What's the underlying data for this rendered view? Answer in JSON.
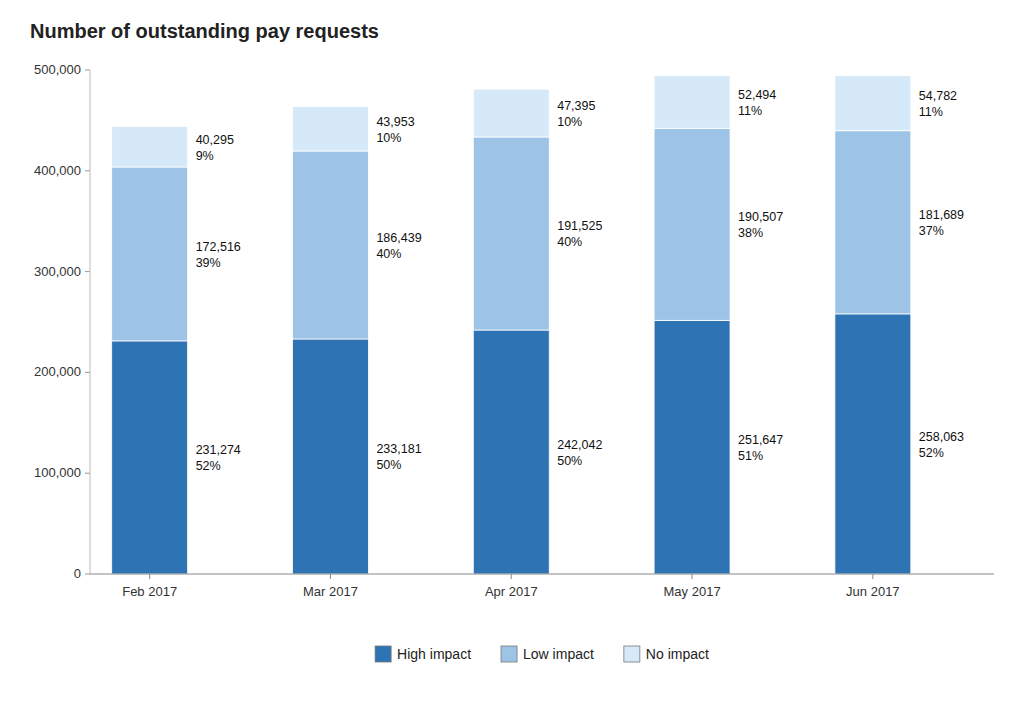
{
  "chart_data": {
    "type": "bar",
    "stacked": true,
    "title": "Number of outstanding pay requests",
    "categories": [
      "Feb 2017",
      "Mar 2017",
      "Apr 2017",
      "May 2017",
      "Jun 2017"
    ],
    "series": [
      {
        "name": "High impact",
        "color": "#2e74b5",
        "values": [
          231274,
          233181,
          242042,
          251647,
          258063
        ],
        "value_labels": [
          "231,274",
          "233,181",
          "242,042",
          "251,647",
          "258,063"
        ],
        "share_labels": [
          "52%",
          "50%",
          "50%",
          "51%",
          "52%"
        ]
      },
      {
        "name": "Low impact",
        "color": "#9dc3e6",
        "values": [
          172516,
          186439,
          191525,
          190507,
          181689
        ],
        "value_labels": [
          "172,516",
          "186,439",
          "191,525",
          "190,507",
          "181,689"
        ],
        "share_labels": [
          "39%",
          "40%",
          "40%",
          "38%",
          "37%"
        ]
      },
      {
        "name": "No impact",
        "color": "#d6e9f8",
        "values": [
          40295,
          43953,
          47395,
          52494,
          54782
        ],
        "value_labels": [
          "40,295",
          "43,953",
          "47,395",
          "52,494",
          "54,782"
        ],
        "share_labels": [
          "9%",
          "10%",
          "10%",
          "11%",
          "11%"
        ]
      }
    ],
    "ylim": [
      0,
      500000
    ],
    "yticks": [
      0,
      {
        "value": 100000,
        "label": "100,000"
      },
      {
        "value": 200000,
        "label": "200,000"
      },
      {
        "value": 300000,
        "label": "300,000"
      },
      {
        "value": 400000,
        "label": "400,000"
      },
      {
        "value": 500000,
        "label": "500,000"
      }
    ],
    "grid": false,
    "legend": "bottom",
    "data_labels": true
  }
}
